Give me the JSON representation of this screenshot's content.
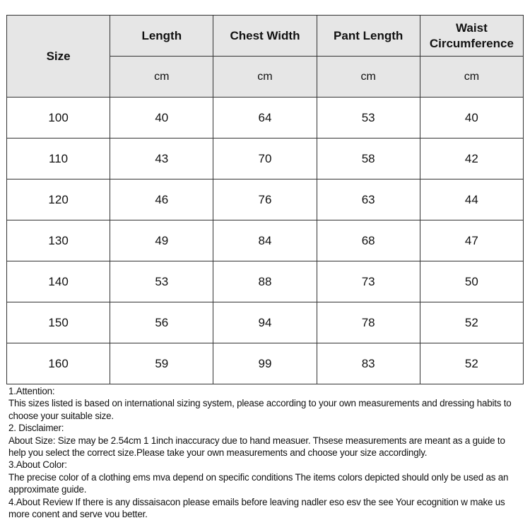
{
  "table": {
    "size_header": "Size",
    "columns": [
      "Length",
      "Chest Width",
      "Pant Length",
      "Waist Circumference"
    ],
    "unit": "cm",
    "rows": [
      [
        "100",
        "40",
        "64",
        "53",
        "40"
      ],
      [
        "110",
        "43",
        "70",
        "58",
        "42"
      ],
      [
        "120",
        "46",
        "76",
        "63",
        "44"
      ],
      [
        "130",
        "49",
        "84",
        "68",
        "47"
      ],
      [
        "140",
        "53",
        "88",
        "73",
        "50"
      ],
      [
        "150",
        "56",
        "94",
        "78",
        "52"
      ],
      [
        "160",
        "59",
        "99",
        "83",
        "52"
      ]
    ]
  },
  "notes": [
    "1.Attention:",
    "This sizes listed is based on international sizing system, please according to your own measurements and dressing habits to choose your suitable size.",
    "2. Disclaimer:",
    "About Size: Size may be 2.54cm 1 1inch inaccuracy due to hand measuer. Thsese measurements are meant as a guide to help you select the correct size.Please take your own measurements and choose your size accordingly.",
    "3.About Color:",
    "The precise color of a clothing ems mva depend on specific conditions The items colors depicted should only be  used as an approximate guide.",
    "4.About Review If there is any dissaisacon please emails before leaving nadler eso esv the see Your ecognition w make us more conent and serve vou better."
  ],
  "colors": {
    "header_bg": "#e6e6e6",
    "border": "#333333"
  }
}
